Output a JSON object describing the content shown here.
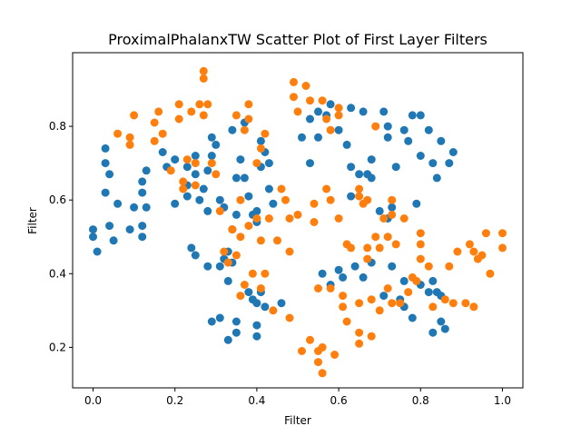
{
  "chart_data": {
    "type": "scatter",
    "title": "ProximalPhalanxTW Scatter Plot of First Layer Filters",
    "xlabel": "Filter",
    "ylabel": "Filter",
    "xlim": [
      -0.05,
      1.05
    ],
    "ylim": [
      0.09,
      1.0
    ],
    "xticks": [
      0.0,
      0.2,
      0.4,
      0.6,
      0.8,
      1.0
    ],
    "xtick_labels": [
      "0.0",
      "0.2",
      "0.4",
      "0.6",
      "0.8",
      "1.0"
    ],
    "yticks": [
      0.2,
      0.4,
      0.6,
      0.8
    ],
    "ytick_labels": [
      "0.2",
      "0.4",
      "0.6",
      "0.8"
    ],
    "grid": false,
    "series": [
      {
        "color": "#1f77b4",
        "points": [
          [
            0.0,
            0.52
          ],
          [
            0.0,
            0.5
          ],
          [
            0.01,
            0.46
          ],
          [
            0.03,
            0.74
          ],
          [
            0.03,
            0.7
          ],
          [
            0.04,
            0.67
          ],
          [
            0.03,
            0.62
          ],
          [
            0.04,
            0.53
          ],
          [
            0.05,
            0.49
          ],
          [
            0.06,
            0.59
          ],
          [
            0.1,
            0.58
          ],
          [
            0.09,
            0.52
          ],
          [
            0.12,
            0.53
          ],
          [
            0.12,
            0.5
          ],
          [
            0.12,
            0.62
          ],
          [
            0.12,
            0.65
          ],
          [
            0.13,
            0.68
          ],
          [
            0.13,
            0.58
          ],
          [
            0.17,
            0.73
          ],
          [
            0.18,
            0.69
          ],
          [
            0.2,
            0.71
          ],
          [
            0.2,
            0.59
          ],
          [
            0.23,
            0.69
          ],
          [
            0.23,
            0.61
          ],
          [
            0.23,
            0.64
          ],
          [
            0.25,
            0.72
          ],
          [
            0.25,
            0.67
          ],
          [
            0.26,
            0.6
          ],
          [
            0.27,
            0.63
          ],
          [
            0.28,
            0.68
          ],
          [
            0.29,
            0.77
          ],
          [
            0.29,
            0.72
          ],
          [
            0.28,
            0.57
          ],
          [
            0.3,
            0.75
          ],
          [
            0.31,
            0.6
          ],
          [
            0.32,
            0.58
          ],
          [
            0.24,
            0.47
          ],
          [
            0.25,
            0.45
          ],
          [
            0.28,
            0.42
          ],
          [
            0.31,
            0.42
          ],
          [
            0.32,
            0.44
          ],
          [
            0.33,
            0.46
          ],
          [
            0.34,
            0.43
          ],
          [
            0.33,
            0.38
          ],
          [
            0.34,
            0.52
          ],
          [
            0.35,
            0.56
          ],
          [
            0.35,
            0.66
          ],
          [
            0.36,
            0.71
          ],
          [
            0.37,
            0.66
          ],
          [
            0.38,
            0.61
          ],
          [
            0.39,
            0.56
          ],
          [
            0.4,
            0.54
          ],
          [
            0.4,
            0.57
          ],
          [
            0.41,
            0.69
          ],
          [
            0.42,
            0.73
          ],
          [
            0.41,
            0.76
          ],
          [
            0.43,
            0.63
          ],
          [
            0.44,
            0.59
          ],
          [
            0.43,
            0.7
          ],
          [
            0.37,
            0.81
          ],
          [
            0.34,
            0.79
          ],
          [
            0.38,
            0.35
          ],
          [
            0.39,
            0.33
          ],
          [
            0.4,
            0.32
          ],
          [
            0.41,
            0.35
          ],
          [
            0.42,
            0.31
          ],
          [
            0.46,
            0.32
          ],
          [
            0.29,
            0.27
          ],
          [
            0.31,
            0.28
          ],
          [
            0.33,
            0.22
          ],
          [
            0.35,
            0.27
          ],
          [
            0.35,
            0.24
          ],
          [
            0.4,
            0.26
          ],
          [
            0.4,
            0.23
          ],
          [
            0.51,
            0.77
          ],
          [
            0.53,
            0.7
          ],
          [
            0.53,
            0.82
          ],
          [
            0.55,
            0.84
          ],
          [
            0.55,
            0.77
          ],
          [
            0.57,
            0.83
          ],
          [
            0.58,
            0.86
          ],
          [
            0.6,
            0.79
          ],
          [
            0.62,
            0.75
          ],
          [
            0.63,
            0.85
          ],
          [
            0.63,
            0.69
          ],
          [
            0.63,
            0.61
          ],
          [
            0.65,
            0.67
          ],
          [
            0.66,
            0.84
          ],
          [
            0.67,
            0.67
          ],
          [
            0.68,
            0.71
          ],
          [
            0.68,
            0.66
          ],
          [
            0.7,
            0.57
          ],
          [
            0.71,
            0.84
          ],
          [
            0.72,
            0.8
          ],
          [
            0.72,
            0.77
          ],
          [
            0.72,
            0.55
          ],
          [
            0.73,
            0.58
          ],
          [
            0.74,
            0.69
          ],
          [
            0.76,
            0.79
          ],
          [
            0.77,
            0.76
          ],
          [
            0.78,
            0.83
          ],
          [
            0.79,
            0.59
          ],
          [
            0.8,
            0.72
          ],
          [
            0.8,
            0.83
          ],
          [
            0.82,
            0.79
          ],
          [
            0.83,
            0.7
          ],
          [
            0.84,
            0.66
          ],
          [
            0.85,
            0.76
          ],
          [
            0.87,
            0.7
          ],
          [
            0.88,
            0.73
          ],
          [
            0.64,
            0.42
          ],
          [
            0.66,
            0.39
          ],
          [
            0.68,
            0.43
          ],
          [
            0.71,
            0.34
          ],
          [
            0.73,
            0.42
          ],
          [
            0.75,
            0.33
          ],
          [
            0.76,
            0.31
          ],
          [
            0.76,
            0.38
          ],
          [
            0.78,
            0.28
          ],
          [
            0.8,
            0.37
          ],
          [
            0.82,
            0.35
          ],
          [
            0.83,
            0.38
          ],
          [
            0.84,
            0.35
          ],
          [
            0.85,
            0.34
          ],
          [
            0.83,
            0.24
          ],
          [
            0.85,
            0.27
          ],
          [
            0.86,
            0.25
          ],
          [
            0.56,
            0.4
          ],
          [
            0.58,
            0.37
          ],
          [
            0.6,
            0.41
          ],
          [
            0.61,
            0.39
          ]
        ]
      },
      {
        "color": "#ff7f0e",
        "points": [
          [
            0.06,
            0.78
          ],
          [
            0.09,
            0.77
          ],
          [
            0.09,
            0.75
          ],
          [
            0.1,
            0.83
          ],
          [
            0.15,
            0.76
          ],
          [
            0.15,
            0.81
          ],
          [
            0.16,
            0.84
          ],
          [
            0.17,
            0.78
          ],
          [
            0.19,
            0.68
          ],
          [
            0.21,
            0.82
          ],
          [
            0.21,
            0.86
          ],
          [
            0.22,
            0.65
          ],
          [
            0.22,
            0.63
          ],
          [
            0.23,
            0.71
          ],
          [
            0.24,
            0.84
          ],
          [
            0.25,
            0.7
          ],
          [
            0.25,
            0.64
          ],
          [
            0.26,
            0.86
          ],
          [
            0.27,
            0.83
          ],
          [
            0.27,
            0.95
          ],
          [
            0.27,
            0.93
          ],
          [
            0.28,
            0.86
          ],
          [
            0.29,
            0.7
          ],
          [
            0.3,
            0.67
          ],
          [
            0.31,
            0.57
          ],
          [
            0.32,
            0.46
          ],
          [
            0.33,
            0.43
          ],
          [
            0.34,
            0.52
          ],
          [
            0.35,
            0.83
          ],
          [
            0.36,
            0.6
          ],
          [
            0.36,
            0.5
          ],
          [
            0.35,
            0.45
          ],
          [
            0.36,
            0.34
          ],
          [
            0.37,
            0.37
          ],
          [
            0.37,
            0.79
          ],
          [
            0.38,
            0.86
          ],
          [
            0.38,
            0.82
          ],
          [
            0.38,
            0.53
          ],
          [
            0.39,
            0.4
          ],
          [
            0.4,
            0.55
          ],
          [
            0.4,
            0.7
          ],
          [
            0.41,
            0.74
          ],
          [
            0.41,
            0.49
          ],
          [
            0.41,
            0.36
          ],
          [
            0.42,
            0.4
          ],
          [
            0.42,
            0.78
          ],
          [
            0.43,
            0.55
          ],
          [
            0.44,
            0.3
          ],
          [
            0.45,
            0.49
          ],
          [
            0.46,
            0.63
          ],
          [
            0.47,
            0.6
          ],
          [
            0.48,
            0.55
          ],
          [
            0.48,
            0.46
          ],
          [
            0.48,
            0.28
          ],
          [
            0.49,
            0.92
          ],
          [
            0.49,
            0.88
          ],
          [
            0.5,
            0.84
          ],
          [
            0.5,
            0.56
          ],
          [
            0.51,
            0.19
          ],
          [
            0.52,
            0.91
          ],
          [
            0.53,
            0.87
          ],
          [
            0.53,
            0.22
          ],
          [
            0.54,
            0.59
          ],
          [
            0.54,
            0.54
          ],
          [
            0.55,
            0.36
          ],
          [
            0.55,
            0.19
          ],
          [
            0.55,
            0.16
          ],
          [
            0.56,
            0.13
          ],
          [
            0.56,
            0.2
          ],
          [
            0.56,
            0.87
          ],
          [
            0.57,
            0.82
          ],
          [
            0.57,
            0.63
          ],
          [
            0.58,
            0.6
          ],
          [
            0.58,
            0.79
          ],
          [
            0.58,
            0.36
          ],
          [
            0.59,
            0.18
          ],
          [
            0.6,
            0.83
          ],
          [
            0.6,
            0.55
          ],
          [
            0.6,
            0.85
          ],
          [
            0.61,
            0.34
          ],
          [
            0.61,
            0.31
          ],
          [
            0.62,
            0.48
          ],
          [
            0.62,
            0.27
          ],
          [
            0.63,
            0.47
          ],
          [
            0.65,
            0.63
          ],
          [
            0.65,
            0.61
          ],
          [
            0.65,
            0.32
          ],
          [
            0.65,
            0.24
          ],
          [
            0.65,
            0.21
          ],
          [
            0.66,
            0.59
          ],
          [
            0.67,
            0.6
          ],
          [
            0.67,
            0.47
          ],
          [
            0.67,
            0.44
          ],
          [
            0.68,
            0.33
          ],
          [
            0.68,
            0.23
          ],
          [
            0.69,
            0.8
          ],
          [
            0.69,
            0.5
          ],
          [
            0.7,
            0.47
          ],
          [
            0.7,
            0.3
          ],
          [
            0.71,
            0.55
          ],
          [
            0.72,
            0.5
          ],
          [
            0.72,
            0.36
          ],
          [
            0.73,
            0.6
          ],
          [
            0.73,
            0.56
          ],
          [
            0.73,
            0.32
          ],
          [
            0.74,
            0.48
          ],
          [
            0.75,
            0.32
          ],
          [
            0.76,
            0.55
          ],
          [
            0.77,
            0.35
          ],
          [
            0.78,
            0.39
          ],
          [
            0.79,
            0.38
          ],
          [
            0.8,
            0.51
          ],
          [
            0.8,
            0.48
          ],
          [
            0.8,
            0.44
          ],
          [
            0.82,
            0.42
          ],
          [
            0.83,
            0.31
          ],
          [
            0.86,
            0.33
          ],
          [
            0.87,
            0.42
          ],
          [
            0.88,
            0.32
          ],
          [
            0.89,
            0.46
          ],
          [
            0.91,
            0.32
          ],
          [
            0.92,
            0.48
          ],
          [
            0.93,
            0.31
          ],
          [
            0.93,
            0.46
          ],
          [
            0.94,
            0.44
          ],
          [
            0.95,
            0.45
          ],
          [
            0.96,
            0.51
          ],
          [
            0.97,
            0.4
          ],
          [
            1.0,
            0.51
          ],
          [
            1.0,
            0.47
          ]
        ]
      }
    ]
  }
}
